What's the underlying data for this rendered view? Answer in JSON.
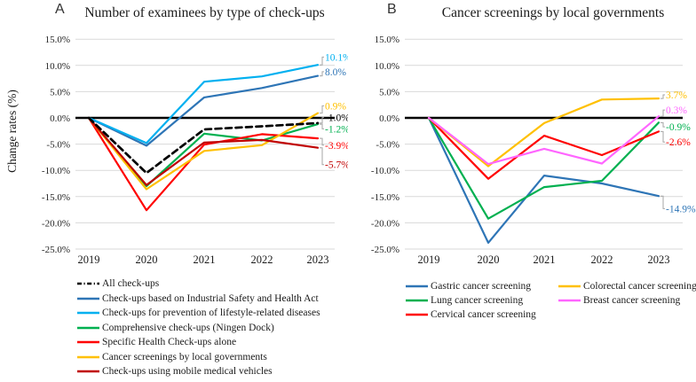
{
  "chart_data": [
    {
      "id": "A",
      "type": "line",
      "panel_label": "A",
      "title": "Number of examinees by type of check-ups",
      "ylabel": "Change rates (%)",
      "x": [
        "2019",
        "2020",
        "2021",
        "2022",
        "2023"
      ],
      "ylim": [
        -25,
        15
      ],
      "ytick_step": 5,
      "ytick_labels": [
        "15.0%",
        "10.0%",
        "5.0%",
        "0.0%",
        "-5.0%",
        "-10.0%",
        "-15.0%",
        "-20.0%",
        "-25.0%"
      ],
      "grid": true,
      "legend_position": "bottom-left",
      "legend_columns": 1,
      "series": [
        {
          "name": "All check-ups",
          "color": "#000000",
          "dash": true,
          "values": [
            0,
            -10.5,
            -2.2,
            -1.6,
            -1.0
          ],
          "end_label": "-1.0%",
          "label_pos": 0.1
        },
        {
          "name": "Check-ups based on Industrial Safety and Health Act",
          "color": "#2E75B6",
          "dash": false,
          "values": [
            0,
            -5.3,
            3.9,
            5.7,
            8.0
          ],
          "end_label": "8.0%",
          "label_pos": 8.8
        },
        {
          "name": "Check-ups for prevention of lifestyle-related diseases",
          "color": "#00B0F0",
          "dash": false,
          "values": [
            0,
            -4.8,
            6.9,
            7.9,
            10.1
          ],
          "end_label": "10.1%",
          "label_pos": 11.6
        },
        {
          "name": "Comprehensive check-ups (Ningen Dock)",
          "color": "#00B050",
          "dash": false,
          "values": [
            0,
            -13.0,
            -3.0,
            -4.3,
            -1.2
          ],
          "end_label": "-1.2%",
          "label_pos": -2.1
        },
        {
          "name": "Specific Health Check-ups alone",
          "color": "#FF0000",
          "dash": false,
          "values": [
            0,
            -17.6,
            -5.1,
            -3.1,
            -3.9
          ],
          "end_label": "-3.9%",
          "label_pos": -5.2
        },
        {
          "name": "Cancer screenings by local governments",
          "color": "#FFC000",
          "dash": false,
          "values": [
            0,
            -13.6,
            -6.3,
            -5.2,
            0.9
          ],
          "end_label": "0.9%",
          "label_pos": 2.3
        },
        {
          "name": "Check-ups using mobile medical vehicles",
          "color": "#C00000",
          "dash": false,
          "values": [
            0,
            -12.8,
            -4.7,
            -4.2,
            -5.7
          ],
          "end_label": "-5.7%",
          "label_pos": -8.9
        }
      ]
    },
    {
      "id": "B",
      "type": "line",
      "panel_label": "B",
      "title": "Cancer screenings by local governments",
      "ylabel": "",
      "x": [
        "2019",
        "2020",
        "2021",
        "2022",
        "2023"
      ],
      "ylim": [
        -25,
        15
      ],
      "ytick_step": 5,
      "ytick_labels": [
        "15.0%",
        "10.0%",
        "5.0%",
        "0.0%",
        "-5.0%",
        "-10.0%",
        "-15.0%",
        "-20.0%",
        "-25.0%"
      ],
      "grid": true,
      "legend_position": "bottom-left",
      "legend_columns": 2,
      "series": [
        {
          "name": "Gastric cancer screening",
          "color": "#2E75B6",
          "dash": false,
          "values": [
            0,
            -23.8,
            -11.0,
            -12.5,
            -14.9
          ],
          "end_label": "-14.9%",
          "label_pos": -17.3
        },
        {
          "name": "Lung cancer screening",
          "color": "#00B050",
          "dash": false,
          "values": [
            0,
            -19.2,
            -13.2,
            -12.0,
            -0.9
          ],
          "end_label": "-0.9%",
          "label_pos": -1.7
        },
        {
          "name": "Cervical cancer screening",
          "color": "#FF0000",
          "dash": false,
          "values": [
            0,
            -11.6,
            -3.4,
            -7.1,
            -2.6
          ],
          "end_label": "-2.6%",
          "label_pos": -4.6
        },
        {
          "name": "Colorectal cancer screening",
          "color": "#FFC000",
          "dash": false,
          "values": [
            0,
            -9.2,
            -1.0,
            3.5,
            3.7
          ],
          "end_label": "3.7%",
          "label_pos": 4.4
        },
        {
          "name": "Breast cancer screening",
          "color": "#FF66FF",
          "dash": false,
          "values": [
            0,
            -8.8,
            -5.9,
            -8.7,
            0.3
          ],
          "end_label": "0.3%",
          "label_pos": 1.5
        }
      ]
    }
  ],
  "style_colors": {
    "gridline": "#D9D9D9",
    "zero_line": "#000000",
    "leader_line": "#A6A6A6"
  }
}
